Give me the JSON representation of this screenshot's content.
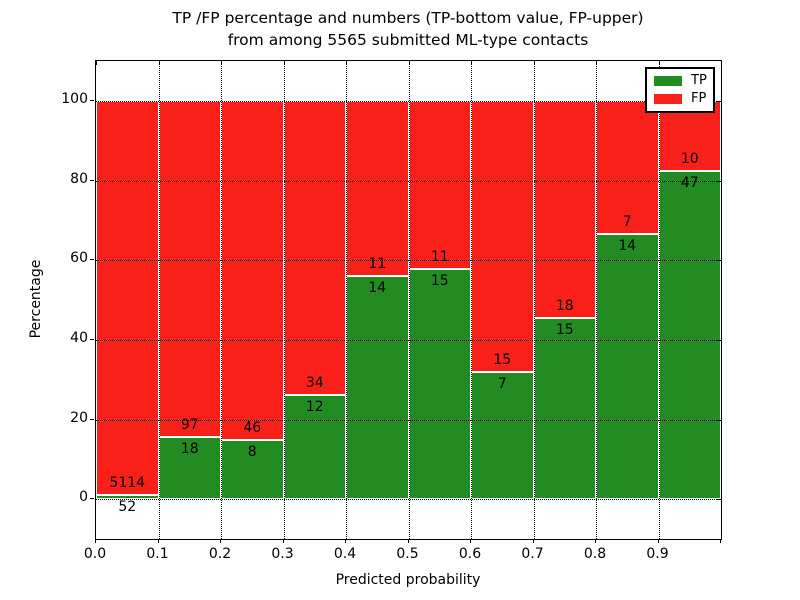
{
  "title": {
    "line1": "TP /FP percentage and numbers (TP-bottom value, FP-upper)",
    "line2": "from among 5565 submitted ML-type contacts"
  },
  "chart_data": {
    "type": "bar",
    "stacked": true,
    "normalized_to_percent": true,
    "title": "TP /FP percentage and numbers (TP-bottom value, FP-upper)\nfrom among 5565 submitted ML-type contacts",
    "xlabel": "Predicted probability",
    "ylabel": "Percentage",
    "xlim": [
      0.0,
      1.0
    ],
    "ylim": [
      -10,
      110
    ],
    "bin_width": 0.1,
    "grid": true,
    "grid_style": "dotted",
    "bar_edge_color": "#ffffff",
    "x_tick_labels": [
      "0.0",
      "0.1",
      "0.2",
      "0.3",
      "0.4",
      "0.5",
      "0.6",
      "0.7",
      "0.8",
      "0.9"
    ],
    "y_ticks": [
      0,
      20,
      40,
      60,
      80,
      100
    ],
    "bin_starts": [
      0.0,
      0.1,
      0.2,
      0.3,
      0.4,
      0.5,
      0.6,
      0.7,
      0.8,
      0.9
    ],
    "series": [
      {
        "name": "TP",
        "color": "#228b22",
        "counts": [
          52,
          18,
          8,
          12,
          14,
          15,
          7,
          15,
          14,
          47
        ],
        "pct": [
          1.01,
          15.65,
          14.81,
          26.09,
          56.0,
          57.69,
          31.82,
          45.45,
          66.67,
          82.46
        ]
      },
      {
        "name": "FP",
        "color": "#fa201a",
        "counts": [
          5114,
          97,
          46,
          34,
          11,
          11,
          15,
          18,
          7,
          10
        ],
        "pct": [
          98.99,
          84.35,
          85.19,
          73.91,
          44.0,
          42.31,
          68.18,
          54.55,
          33.33,
          17.54
        ]
      }
    ],
    "legend": {
      "position": "upper-right",
      "entries": [
        {
          "label": "TP",
          "color": "#228b22"
        },
        {
          "label": "FP",
          "color": "#fa201a"
        }
      ]
    }
  }
}
